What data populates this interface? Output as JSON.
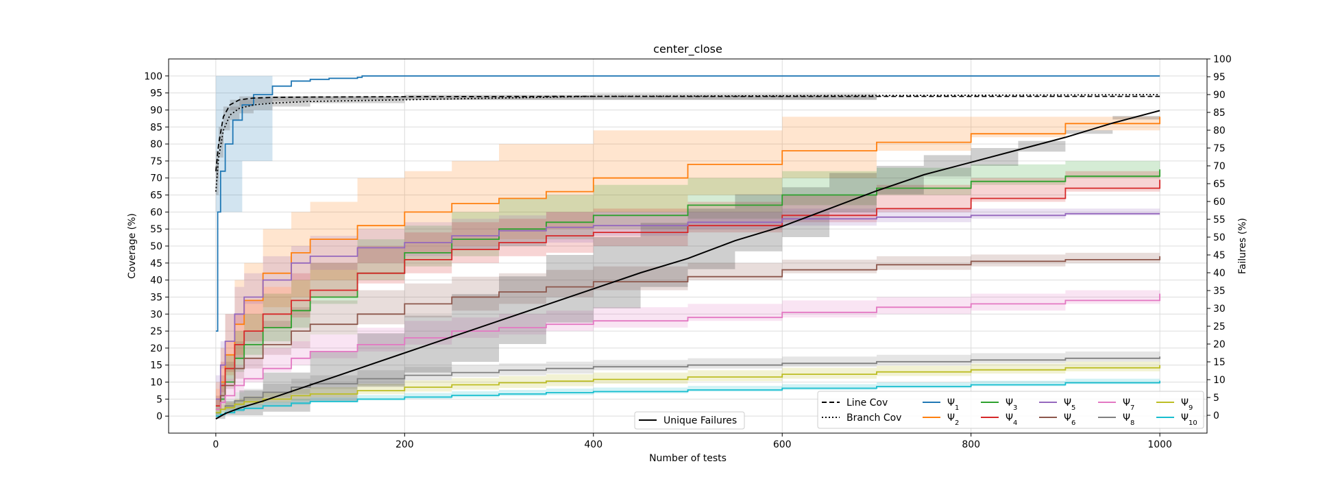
{
  "chart_data": {
    "type": "line",
    "title": "center_close",
    "xlabel": "Number of tests",
    "ylabel_left": "Coverage (%)",
    "ylabel_right": "Failures (%)",
    "xlim": [
      -50,
      1050
    ],
    "ylim_left": [
      -5,
      105
    ],
    "ylim_right": [
      -5,
      100
    ],
    "xticks": [
      "0",
      "200",
      "400",
      "600",
      "800",
      "1000"
    ],
    "yticks_left": [
      "0",
      "5",
      "10",
      "15",
      "20",
      "25",
      "30",
      "35",
      "40",
      "45",
      "50",
      "55",
      "60",
      "65",
      "70",
      "75",
      "80",
      "85",
      "90",
      "95",
      "100"
    ],
    "yticks_right": [
      "0",
      "5",
      "10",
      "15",
      "20",
      "25",
      "30",
      "35",
      "40",
      "45",
      "50",
      "55",
      "60",
      "65",
      "70",
      "75",
      "80",
      "85",
      "90",
      "95",
      "100"
    ],
    "grid": true,
    "legend_main": {
      "placement": "lower-right",
      "columns": 6
    },
    "legend_unique": {
      "placement": "lower-center"
    },
    "coverage": [
      {
        "name": "Line Cov",
        "style": "dashed",
        "color": "#000000",
        "x": [
          0,
          3,
          8,
          15,
          25,
          40,
          60,
          100,
          200,
          400,
          1000
        ],
        "y": [
          72,
          80,
          88,
          91.5,
          93,
          93.5,
          93.7,
          93.8,
          93.9,
          94,
          94
        ],
        "band_lo": [
          60,
          70,
          80,
          88,
          90,
          91,
          92,
          92.5,
          93,
          93,
          93
        ],
        "band_hi": [
          78,
          85,
          91,
          93,
          94,
          94,
          94,
          94,
          94,
          94,
          94
        ],
        "band_end_x": 700
      },
      {
        "name": "Branch Cov",
        "style": "dotted",
        "color": "#000000",
        "x": [
          0,
          3,
          8,
          15,
          25,
          40,
          60,
          100,
          200,
          400,
          1000
        ],
        "y": [
          66,
          76,
          84,
          88.5,
          90.5,
          91.5,
          92,
          92.5,
          93,
          94,
          94.5
        ],
        "band_lo": [
          55,
          65,
          76,
          84,
          87,
          89,
          90,
          91,
          92,
          93,
          93.5
        ],
        "band_hi": [
          74,
          82,
          88,
          91,
          93,
          93.5,
          94,
          94,
          94.5,
          94.8,
          95
        ],
        "band_end_x": 700
      }
    ],
    "series": [
      {
        "name": "Ψ1",
        "base": "Ψ",
        "sub": "1",
        "color": "#1f77b4",
        "x": [
          0,
          2,
          5,
          10,
          18,
          28,
          40,
          60,
          80,
          100,
          120,
          150,
          155,
          1000
        ],
        "y": [
          25,
          60,
          72,
          80,
          87,
          91.5,
          94.5,
          97,
          98.5,
          99,
          99.3,
          99.6,
          100,
          100
        ],
        "band_lo": [
          0,
          60,
          60,
          60,
          60,
          60,
          75,
          75,
          100,
          100,
          100,
          100,
          100,
          100
        ],
        "band_hi": [
          100,
          100,
          100,
          100,
          100,
          100,
          100,
          100,
          100,
          100,
          100,
          100,
          100,
          100
        ],
        "band_end_x": 155
      },
      {
        "name": "Ψ2",
        "base": "Ψ",
        "sub": "2",
        "color": "#ff7f0e",
        "x": [
          0,
          5,
          10,
          20,
          30,
          50,
          80,
          100,
          150,
          200,
          250,
          300,
          350,
          400,
          500,
          600,
          700,
          800,
          900,
          1000
        ],
        "y": [
          3,
          10,
          18,
          27,
          34,
          42,
          48,
          52,
          56,
          60,
          62.5,
          64,
          66,
          70,
          74,
          78,
          80.5,
          83,
          86,
          88
        ],
        "band_lo": [
          0,
          3,
          6,
          12,
          18,
          25,
          32,
          35,
          40,
          45,
          48,
          50,
          52,
          55,
          60,
          65,
          70,
          78,
          82,
          84
        ],
        "band_hi": [
          10,
          20,
          30,
          40,
          45,
          55,
          60,
          63,
          70,
          72,
          75,
          80,
          80,
          84,
          84,
          88,
          88,
          88,
          88,
          88
        ]
      },
      {
        "name": "Ψ3",
        "base": "Ψ",
        "sub": "3",
        "color": "#2ca02c",
        "x": [
          0,
          5,
          10,
          20,
          30,
          50,
          80,
          100,
          150,
          200,
          250,
          300,
          350,
          400,
          500,
          600,
          700,
          800,
          900,
          1000
        ],
        "y": [
          1,
          5,
          10,
          17,
          21,
          26,
          31,
          35,
          42,
          48,
          52,
          55,
          57,
          59,
          62,
          65,
          67,
          69,
          70.5,
          72.5
        ],
        "band_lo": [
          0,
          1,
          4,
          10,
          13,
          18,
          22,
          26,
          33,
          40,
          44,
          47,
          50,
          52,
          55,
          58,
          62,
          65,
          68,
          70
        ],
        "band_hi": [
          5,
          10,
          18,
          25,
          30,
          36,
          40,
          45,
          52,
          56,
          60,
          64,
          65,
          68,
          70,
          72,
          73,
          74,
          75,
          75
        ]
      },
      {
        "name": "Ψ4",
        "base": "Ψ",
        "sub": "4",
        "color": "#d62728",
        "x": [
          0,
          5,
          10,
          20,
          30,
          50,
          80,
          100,
          150,
          200,
          250,
          300,
          350,
          400,
          500,
          600,
          700,
          800,
          900,
          1000
        ],
        "y": [
          3,
          9,
          14,
          21,
          25,
          30,
          34,
          37,
          42,
          46,
          49,
          51,
          53,
          54,
          56,
          59,
          61,
          64,
          67,
          69.5
        ],
        "band_lo": [
          0,
          3,
          7,
          13,
          17,
          22,
          26,
          29,
          35,
          39,
          42,
          45,
          47,
          48,
          50,
          54,
          57,
          60,
          63,
          66
        ],
        "band_hi": [
          8,
          16,
          22,
          30,
          34,
          38,
          42,
          45,
          50,
          54,
          57,
          58,
          60,
          61,
          63,
          65,
          68,
          70,
          72,
          73
        ]
      },
      {
        "name": "Ψ5",
        "base": "Ψ",
        "sub": "5",
        "color": "#9467bd",
        "x": [
          0,
          5,
          10,
          20,
          30,
          50,
          80,
          100,
          150,
          200,
          250,
          300,
          350,
          400,
          500,
          600,
          700,
          800,
          900,
          1000
        ],
        "y": [
          5,
          15,
          22,
          30,
          35,
          40,
          45,
          47,
          49.5,
          51,
          53,
          54.5,
          55.5,
          56,
          57,
          58,
          58.5,
          59,
          59.5,
          59.5
        ],
        "band_lo": [
          0,
          8,
          14,
          22,
          27,
          33,
          38,
          40,
          43,
          45,
          47,
          49,
          50,
          51,
          53,
          55,
          56,
          57,
          58,
          59
        ],
        "band_hi": [
          12,
          22,
          30,
          38,
          42,
          47,
          50,
          53,
          55,
          57,
          58,
          59,
          60,
          60,
          60,
          61,
          61,
          61,
          61,
          61
        ]
      },
      {
        "name": "Ψ6",
        "base": "Ψ",
        "sub": "6",
        "color": "#8c564b",
        "x": [
          0,
          5,
          10,
          20,
          30,
          50,
          80,
          100,
          150,
          200,
          250,
          300,
          350,
          400,
          500,
          600,
          700,
          800,
          900,
          1000
        ],
        "y": [
          2,
          6,
          9,
          14,
          17,
          21,
          25,
          27,
          30,
          33,
          35,
          36.5,
          38,
          39.5,
          41,
          43,
          44.5,
          45.5,
          46,
          47
        ],
        "band_lo": [
          0,
          2,
          4,
          8,
          11,
          14,
          18,
          20,
          24,
          27,
          29,
          31,
          33,
          35,
          37,
          40,
          42,
          43,
          44,
          45
        ],
        "band_hi": [
          6,
          12,
          16,
          22,
          25,
          28,
          32,
          34,
          37,
          39,
          41,
          42,
          43,
          44,
          45,
          46,
          47,
          47.5,
          48,
          48
        ]
      },
      {
        "name": "Ψ7",
        "base": "Ψ",
        "sub": "7",
        "color": "#e377c2",
        "x": [
          0,
          5,
          10,
          20,
          30,
          50,
          80,
          100,
          150,
          200,
          250,
          300,
          350,
          400,
          500,
          600,
          700,
          800,
          900,
          1000
        ],
        "y": [
          2,
          4,
          6,
          9,
          11,
          14,
          17,
          19,
          21,
          23,
          25,
          26,
          27,
          28,
          29,
          30.5,
          32,
          33,
          34,
          36
        ],
        "band_lo": [
          0,
          1,
          2,
          5,
          7,
          10,
          13,
          15,
          17,
          19,
          21,
          23,
          24,
          25,
          26,
          28,
          29,
          30,
          31,
          33
        ],
        "band_hi": [
          5,
          8,
          11,
          15,
          17,
          20,
          22,
          24,
          26,
          28,
          29,
          30,
          31,
          32,
          33,
          34,
          35,
          36,
          37,
          38
        ]
      },
      {
        "name": "Ψ8",
        "base": "Ψ",
        "sub": "8",
        "color": "#7f7f7f",
        "x": [
          0,
          5,
          10,
          20,
          30,
          50,
          80,
          100,
          150,
          200,
          250,
          300,
          350,
          400,
          500,
          600,
          700,
          800,
          900,
          1000
        ],
        "y": [
          1,
          2,
          3,
          4.5,
          5.5,
          7,
          8.5,
          9.5,
          11,
          12,
          12.8,
          13.5,
          14,
          14.5,
          15,
          15.5,
          16,
          16.5,
          17,
          17.5
        ],
        "band_lo": [
          0,
          0.5,
          1,
          2,
          3,
          4,
          5.5,
          6.5,
          8,
          9,
          10.5,
          11.5,
          12,
          12.5,
          13.5,
          14,
          14.5,
          15,
          15.5,
          16
        ],
        "band_hi": [
          3,
          4,
          5,
          7,
          8,
          9.5,
          11,
          12,
          13.5,
          14.5,
          15,
          15.5,
          16,
          16.5,
          17,
          17.5,
          18,
          18.5,
          19,
          19
        ]
      },
      {
        "name": "Ψ9",
        "base": "Ψ",
        "sub": "9",
        "color": "#bcbd22",
        "x": [
          0,
          5,
          10,
          20,
          30,
          50,
          80,
          100,
          150,
          200,
          250,
          300,
          350,
          400,
          500,
          600,
          700,
          800,
          900,
          1000
        ],
        "y": [
          1,
          2,
          2.5,
          3.5,
          4.2,
          5,
          6,
          6.5,
          7.5,
          8.5,
          9.2,
          9.8,
          10.3,
          10.8,
          11.5,
          12.3,
          13,
          13.6,
          14.2,
          15
        ],
        "band_lo": [
          0,
          0.5,
          1,
          1.8,
          2.5,
          3.2,
          4,
          4.5,
          5.5,
          6.5,
          7.2,
          7.8,
          8.3,
          8.8,
          9.5,
          10.3,
          11,
          11.8,
          12.5,
          13.2
        ],
        "band_hi": [
          2.5,
          3.5,
          4,
          5,
          5.8,
          6.8,
          8,
          8.5,
          9.5,
          10.5,
          11.2,
          11.8,
          12.3,
          12.8,
          13.5,
          14.2,
          14.8,
          15.4,
          16,
          16.5
        ]
      },
      {
        "name": "Ψ10",
        "base": "Ψ",
        "sub": "10",
        "color": "#17becf",
        "x": [
          0,
          5,
          10,
          20,
          30,
          50,
          80,
          100,
          150,
          200,
          250,
          300,
          350,
          400,
          500,
          600,
          700,
          800,
          900,
          1000
        ],
        "y": [
          0,
          0.5,
          1,
          1.8,
          2.3,
          3,
          3.8,
          4.3,
          5,
          5.6,
          6.1,
          6.5,
          6.9,
          7.2,
          7.7,
          8.2,
          8.7,
          9.2,
          9.8,
          10.4
        ],
        "band_lo": [
          0,
          0,
          0.2,
          0.8,
          1.3,
          2,
          2.8,
          3.3,
          4,
          4.6,
          5.1,
          5.5,
          5.9,
          6.2,
          6.7,
          7.2,
          7.7,
          8.2,
          8.8,
          9.4
        ],
        "band_hi": [
          1,
          1.5,
          2,
          3,
          3.5,
          4.2,
          5,
          5.5,
          6.2,
          6.8,
          7.3,
          7.7,
          8.1,
          8.4,
          8.9,
          9.4,
          9.9,
          10.4,
          11,
          11.5
        ]
      }
    ],
    "unique_failures": {
      "name": "Unique Failures",
      "color": "#000000",
      "axis": "right",
      "x": [
        0,
        10,
        25,
        50,
        100,
        150,
        200,
        250,
        300,
        350,
        400,
        450,
        500,
        550,
        600,
        650,
        700,
        750,
        800,
        850,
        900,
        950,
        1000
      ],
      "y": [
        -1,
        0.5,
        2,
        4,
        8.5,
        13,
        17.5,
        22,
        26.5,
        31,
        35.5,
        40,
        44,
        49,
        53,
        58,
        63,
        67.5,
        71,
        74.5,
        78,
        82,
        85.5
      ],
      "band_lo": [
        -1,
        -1,
        0,
        0,
        1,
        4,
        8,
        12,
        15,
        20,
        26,
        30,
        36,
        41,
        46,
        50,
        57,
        62,
        67,
        70,
        74,
        79,
        83
      ],
      "band_hi": [
        0.5,
        4,
        7,
        12,
        18,
        23,
        28,
        34,
        39,
        45,
        50,
        54,
        58,
        62,
        64,
        68,
        70,
        73,
        75,
        77,
        80,
        84,
        86
      ]
    },
    "legend_labels": {
      "line_cov": "Line Cov",
      "branch_cov": "Branch Cov",
      "unique_failures": "Unique Failures"
    }
  }
}
